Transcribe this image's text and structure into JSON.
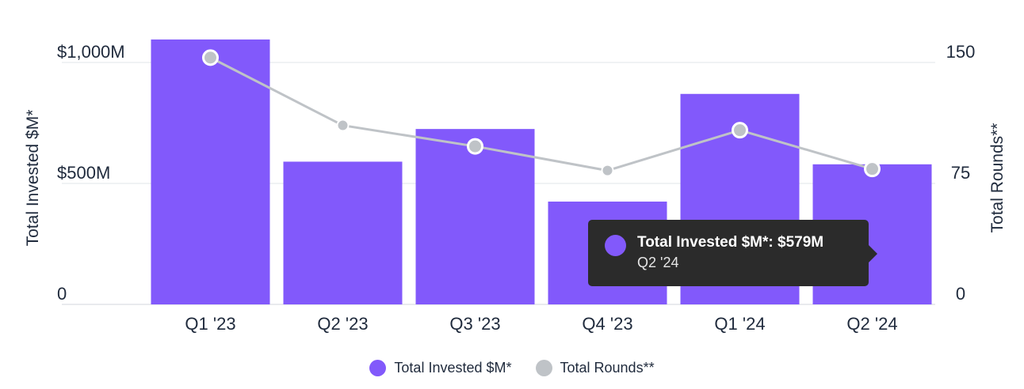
{
  "chart_data": {
    "type": "bar",
    "categories": [
      "Q1 '23",
      "Q2 '23",
      "Q3 '23",
      "Q4 '23",
      "Q1 '24",
      "Q2 '24"
    ],
    "series": [
      {
        "name": "Total Invested $M*",
        "type": "bar",
        "axis": "left",
        "color": "#8259fb",
        "values": [
          1095,
          590,
          725,
          425,
          870,
          579
        ]
      },
      {
        "name": "Total Rounds**",
        "type": "line",
        "axis": "right",
        "color": "#bfc3c7",
        "values": [
          153,
          111,
          98,
          83,
          108,
          84
        ]
      }
    ],
    "ylabel": "Total Invested $M*",
    "ylabel_right": "Total Rounds**",
    "ylim": [
      0,
      1000
    ],
    "ylim_right": [
      0,
      150
    ],
    "y_ticks": [
      {
        "value": 0,
        "label": "0"
      },
      {
        "value": 500,
        "label": "$500M"
      },
      {
        "value": 1000,
        "label": "$1,000M"
      }
    ],
    "y_ticks_right": [
      {
        "value": 0,
        "label": "0"
      },
      {
        "value": 75,
        "label": "75"
      },
      {
        "value": 150,
        "label": "150"
      }
    ],
    "grid": true,
    "legend": {
      "placement": "bottom-center",
      "items": [
        {
          "label": "Total Invested $M*",
          "color": "#8259fb"
        },
        {
          "label": "Total Rounds**",
          "color": "#bfc3c7"
        }
      ]
    },
    "tooltip": {
      "title": "Total Invested $M*: $579M",
      "subtitle": "Q2 '24",
      "color": "#8259fb"
    }
  }
}
